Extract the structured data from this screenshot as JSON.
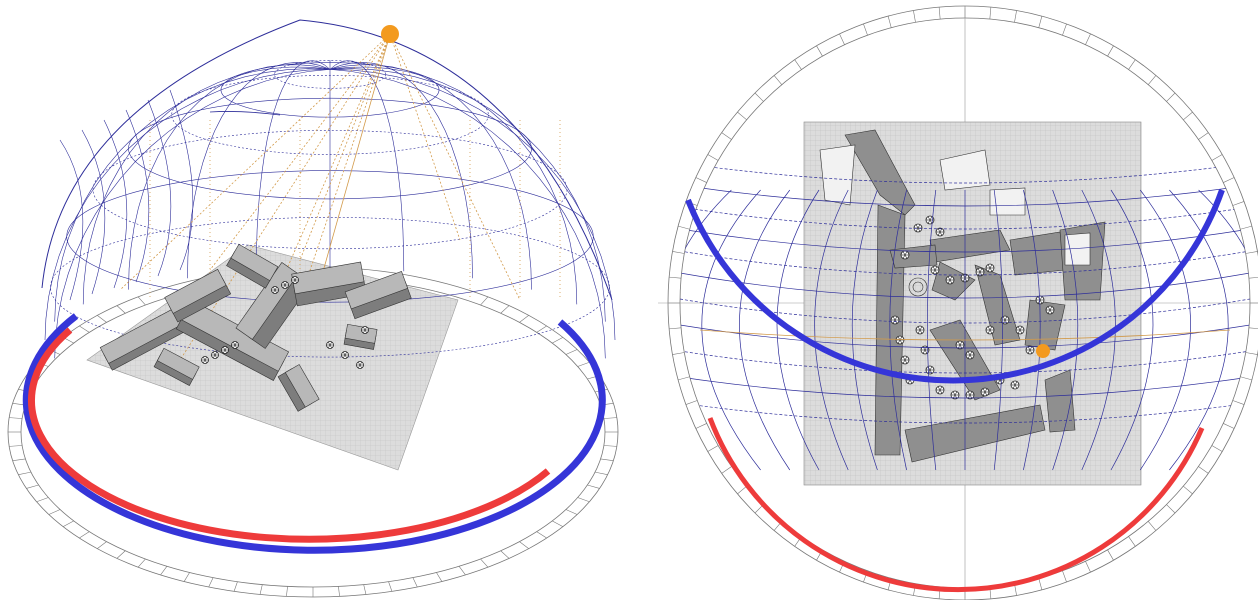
{
  "figure": {
    "panels": [
      {
        "id": "perspective",
        "view": "3d-sun-path-dome"
      },
      {
        "id": "plan",
        "view": "stereographic-sun-path-plan"
      }
    ],
    "colors": {
      "background": "#ffffff",
      "sun": "#f39a1e",
      "sun_path_arc_winter": "#3535d8",
      "sun_path_arc_summer": "#ee3b3b",
      "dome_grid": "#2e2e9a",
      "projection_lines": "#d29a4a",
      "site_plane": "#d6d6d6",
      "buildings": "#8f8f8f",
      "building_roofs": "#b5b5b5",
      "trees": "#222222",
      "ticks": "#666666"
    },
    "icons": [
      "sun-icon",
      "tree-icon"
    ]
  }
}
